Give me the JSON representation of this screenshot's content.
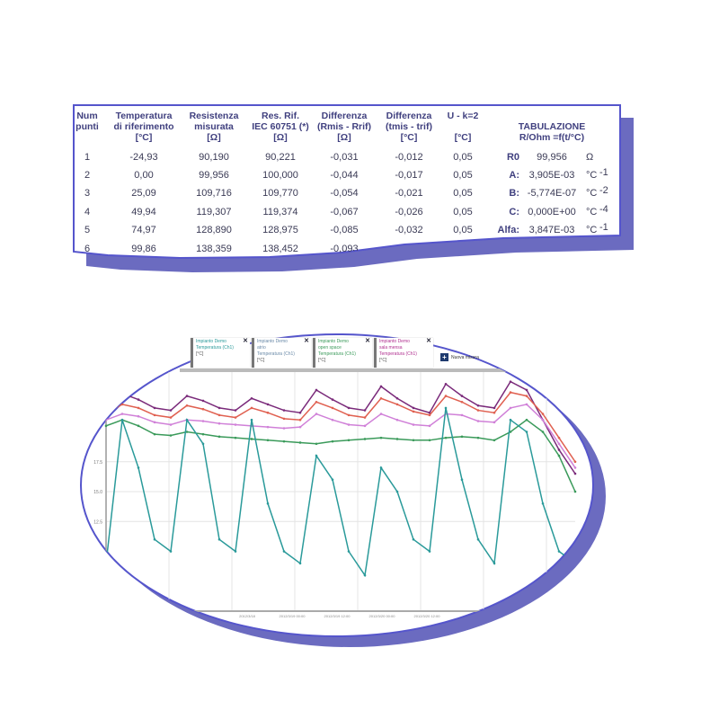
{
  "table": {
    "headers": [
      [
        "Num",
        "punti"
      ],
      [
        "Temperatura",
        "di riferimento",
        "[°C]"
      ],
      [
        "Resistenza",
        "misurata",
        "[Ω]"
      ],
      [
        "Res. Rif.",
        "IEC 60751 (*)",
        "[Ω]"
      ],
      [
        "Differenza",
        "(Rmis - Rrif)",
        "[Ω]"
      ],
      [
        "Differenza",
        "(tmis - trif)",
        "[°C]"
      ],
      [
        "U - k=2",
        "",
        "[°C]"
      ]
    ],
    "rows": [
      [
        "1",
        "-24,93",
        "90,190",
        "90,221",
        "-0,031",
        "-0,012",
        "0,05"
      ],
      [
        "2",
        "0,00",
        "99,956",
        "100,000",
        "-0,044",
        "-0,017",
        "0,05"
      ],
      [
        "3",
        "25,09",
        "109,716",
        "109,770",
        "-0,054",
        "-0,021",
        "0,05"
      ],
      [
        "4",
        "49,94",
        "119,307",
        "119,374",
        "-0,067",
        "-0,026",
        "0,05"
      ],
      [
        "5",
        "74,97",
        "128,890",
        "128,975",
        "-0,085",
        "-0,032",
        "0,05"
      ],
      [
        "6",
        "99,86",
        "138,359",
        "138,452",
        "-0,093",
        "",
        ""
      ]
    ],
    "tabulation": {
      "title": "TABULAZIONE",
      "subtitle": "R/Ohm =f(t/°C)",
      "coefficients": [
        {
          "label": "R0",
          "value": "99,956",
          "unit": "Ω",
          "exp": ""
        },
        {
          "label": "A:",
          "value": "3,905E-03",
          "unit": "°C",
          "exp": "-1"
        },
        {
          "label": "B:",
          "value": "-5,774E-07",
          "unit": "°C",
          "exp": "-2"
        },
        {
          "label": "C:",
          "value": "0,000E+00",
          "unit": "°C",
          "exp": "-4"
        },
        {
          "label": "Alfa:",
          "value": "3,847E-03",
          "unit": "°C",
          "exp": "-1"
        }
      ]
    }
  },
  "legend": [
    {
      "line1": "Impianto Demo",
      "line2": "Temperatura (Ch1)",
      "unit": "[°C]",
      "color": "#2a9a9a"
    },
    {
      "line1": "Impianto Demo",
      "line1b": "atrio",
      "line2": "Temperatura (Ch1)",
      "unit": "[°C]",
      "color": "#6a8aa8"
    },
    {
      "line1": "Impianto Demo",
      "line1b": "open space",
      "line2": "Temperatura (Ch1)",
      "unit": "[°C]",
      "color": "#3a9a5a"
    },
    {
      "line1": "Impianto Demo",
      "line1b": "sala mensa",
      "line2": "Temperatura (Ch1)",
      "unit": "[°C]",
      "color": "#b03090"
    }
  ],
  "new_measure": "Nuova misura",
  "colors": {
    "frame": "#5555cc",
    "shadow": "#6b6bc0"
  },
  "chart_data": {
    "type": "line",
    "ylim": [
      5,
      25
    ],
    "yticks": [
      "12.5",
      "15.0",
      "17.5"
    ],
    "ytick_values": [
      12.5,
      15.0,
      17.5
    ],
    "xtick_labels": [
      "2012/3/18",
      "2012/3/19 00:00",
      "2012/3/19 12:00",
      "2012/3/20 00:00",
      "2012/3/20 12:00"
    ],
    "x": [
      "2012/3/17 00:00",
      "2012/3/17 06:00",
      "2012/3/17 12:00",
      "2012/3/17 18:00",
      "2012/3/18 00:00",
      "2012/3/18 06:00",
      "2012/3/18 12:00",
      "2012/3/18 18:00",
      "2012/3/19 00:00",
      "2012/3/19 06:00",
      "2012/3/19 12:00",
      "2012/3/19 18:00",
      "2012/3/20 00:00",
      "2012/3/20 06:00",
      "2012/3/20 12:00",
      "2012/3/20 18:00",
      "2012/3/21 00:00",
      "2012/3/21 06:00",
      "2012/3/21 12:00",
      "2012/3/21 18:00",
      "2012/3/22 00:00",
      "2012/3/22 06:00",
      "2012/3/22 12:00",
      "2012/3/22 18:00",
      "2012/3/23 00:00",
      "2012/3/23 06:00",
      "2012/3/23 12:00",
      "2012/3/23 18:00",
      "2012/3/24 00:00",
      "2012/3/24 06:00"
    ],
    "series": [
      {
        "color": "#7a2a7a",
        "values": [
          22,
          23.2,
          22.7,
          22,
          21.8,
          23,
          22.6,
          22,
          21.8,
          22.8,
          22.3,
          21.8,
          21.6,
          23.5,
          22.7,
          22,
          21.8,
          23.8,
          22.8,
          22,
          21.6,
          24,
          23,
          22.2,
          22,
          24.2,
          23.5,
          21,
          18.5,
          16.5
        ]
      },
      {
        "color": "#e06050",
        "values": [
          21.5,
          22.3,
          22,
          21.4,
          21.2,
          22.2,
          21.9,
          21.4,
          21.2,
          22,
          21.6,
          21.1,
          21,
          22.5,
          22,
          21.4,
          21.2,
          22.8,
          22.3,
          21.7,
          21.4,
          23,
          22.5,
          21.8,
          21.6,
          23.3,
          23,
          21.5,
          19.5,
          17.5
        ]
      },
      {
        "color": "#d080d8",
        "values": [
          21,
          21.5,
          21.3,
          20.8,
          20.6,
          21,
          20.9,
          20.7,
          20.6,
          20.5,
          20.4,
          20.3,
          20.4,
          21.5,
          21,
          20.6,
          20.5,
          21.5,
          21,
          20.6,
          20.5,
          21.5,
          21.4,
          20.9,
          20.8,
          22,
          22.3,
          21,
          19,
          17
        ]
      },
      {
        "color": "#3a9a5a",
        "values": [
          20.5,
          21,
          20.5,
          19.8,
          19.7,
          20,
          19.8,
          19.6,
          19.5,
          19.4,
          19.3,
          19.2,
          19.1,
          19,
          19.2,
          19.3,
          19.4,
          19.5,
          19.4,
          19.3,
          19.3,
          19.5,
          19.6,
          19.5,
          19.3,
          20,
          21,
          20,
          18,
          15
        ]
      },
      {
        "color": "#2a9a9a",
        "values": [
          9,
          21,
          17,
          11,
          10,
          21,
          19,
          11,
          10,
          21,
          14,
          10,
          9,
          18,
          16,
          10,
          8,
          17,
          15,
          11,
          10,
          22,
          16,
          11,
          9,
          21,
          20,
          14,
          10,
          9
        ]
      }
    ]
  }
}
